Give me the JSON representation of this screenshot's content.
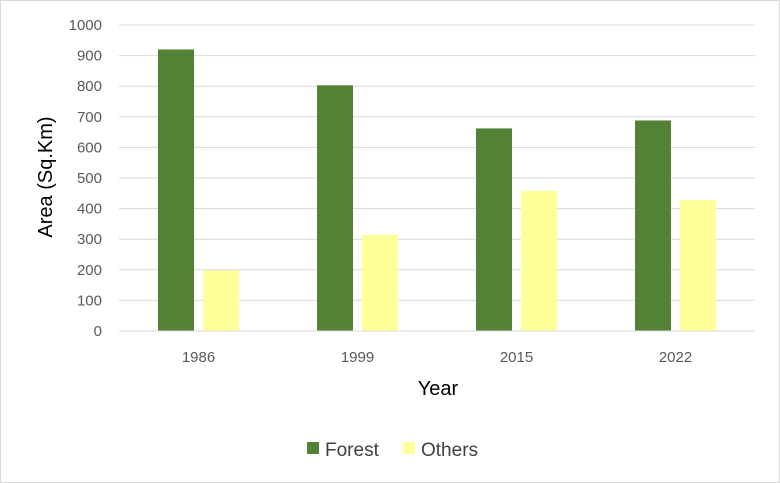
{
  "chart_data": {
    "type": "bar",
    "title": "",
    "xlabel": "Year",
    "ylabel": "Area (Sq.Km)",
    "categories": [
      "1986",
      "1999",
      "2015",
      "2022"
    ],
    "series": [
      {
        "name": "Forest",
        "color": "#538135",
        "values": [
          920,
          803,
          662,
          688
        ]
      },
      {
        "name": "Others",
        "color": "#ffff99",
        "values": [
          198,
          314,
          458,
          428
        ]
      }
    ],
    "ylim": [
      0,
      1000
    ],
    "yticks": [
      "0",
      "100",
      "200",
      "300",
      "400",
      "500",
      "600",
      "700",
      "800",
      "900",
      "1000"
    ],
    "grid": true,
    "legend_position": "bottom"
  }
}
